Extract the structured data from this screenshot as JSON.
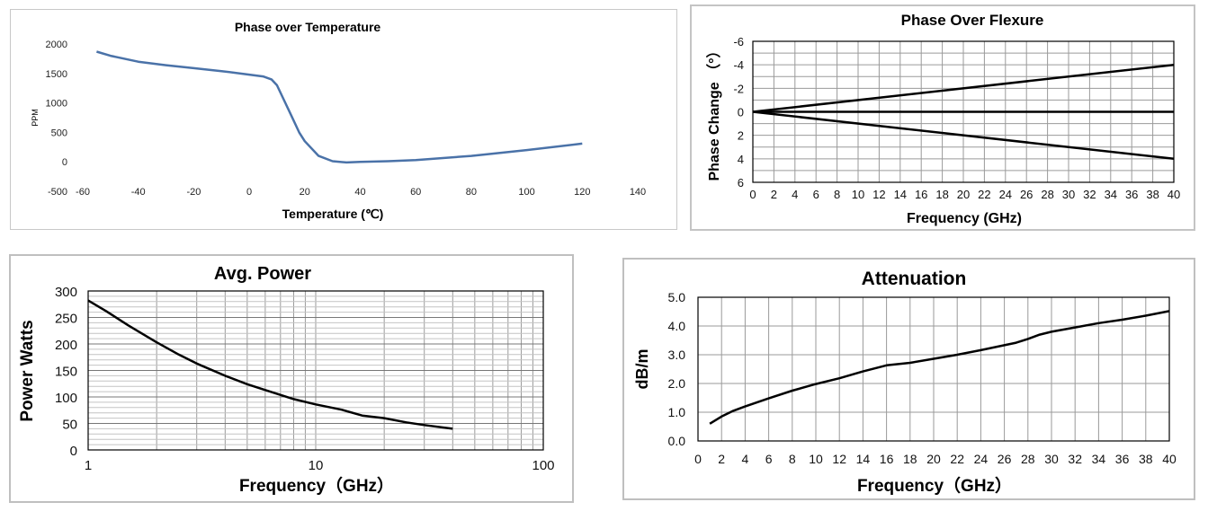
{
  "colors": {
    "temp_line": "#4a72a8",
    "black_line": "#000000",
    "grid": "#9a9a9a",
    "axis": "#000000"
  },
  "chart_data": [
    {
      "id": "temp",
      "type": "line",
      "title": "Phase over Temperature",
      "xlabel": "Temperature (℃)",
      "ylabel": "PPM",
      "xlim": [
        -60,
        140
      ],
      "ylim": [
        -500,
        2000
      ],
      "xticks": [
        "-60",
        "-40",
        "-20",
        "0",
        "20",
        "40",
        "60",
        "80",
        "100",
        "120",
        "140"
      ],
      "yticks": [
        "2000",
        "1500",
        "1000",
        "500",
        "0",
        "-500"
      ],
      "grid": false,
      "series": [
        {
          "x": [
            -55,
            -50,
            -40,
            -30,
            -20,
            -10,
            0,
            5,
            8,
            10,
            12,
            15,
            18,
            20,
            25,
            30,
            35,
            40,
            50,
            60,
            80,
            100,
            120
          ],
          "y": [
            1870,
            1800,
            1700,
            1640,
            1590,
            1540,
            1480,
            1450,
            1400,
            1300,
            1100,
            800,
            500,
            350,
            100,
            10,
            -10,
            0,
            10,
            30,
            100,
            200,
            310
          ]
        }
      ]
    },
    {
      "id": "flex",
      "type": "line",
      "title": "Phase Over Flexure",
      "xlabel": "Frequency (GHz)",
      "ylabel": "Phase Change （°）",
      "xlim": [
        0,
        40
      ],
      "ylim": [
        -6,
        6
      ],
      "y_inverted": true,
      "xticks": [
        "0",
        "2",
        "4",
        "6",
        "8",
        "10",
        "12",
        "14",
        "16",
        "18",
        "20",
        "22",
        "24",
        "26",
        "28",
        "30",
        "32",
        "34",
        "36",
        "38",
        "40"
      ],
      "yticks": [
        "-6",
        "-4",
        "-2",
        "0",
        "2",
        "4",
        "6"
      ],
      "grid": true,
      "series": [
        {
          "x": [
            0,
            40
          ],
          "y": [
            0,
            -4
          ]
        },
        {
          "x": [
            0,
            40
          ],
          "y": [
            0,
            0
          ]
        },
        {
          "x": [
            0,
            40
          ],
          "y": [
            0,
            4
          ]
        }
      ]
    },
    {
      "id": "power",
      "type": "line",
      "title": "Avg. Power",
      "xlabel": "Frequency（GHz）",
      "ylabel": "Power  Watts",
      "xscale": "log",
      "xlim": [
        1,
        100
      ],
      "ylim": [
        0,
        300
      ],
      "xticks": [
        "1",
        "10",
        "100"
      ],
      "yticks": [
        "300",
        "250",
        "200",
        "150",
        "100",
        "50",
        "0"
      ],
      "grid": true,
      "series": [
        {
          "x": [
            1,
            1.2,
            1.5,
            2,
            2.5,
            3,
            4,
            5,
            6,
            8,
            10,
            13,
            16,
            20,
            25,
            30,
            40
          ],
          "y": [
            282,
            262,
            235,
            203,
            180,
            163,
            140,
            124,
            113,
            96,
            86,
            76,
            65,
            60,
            52,
            47,
            40
          ]
        }
      ]
    },
    {
      "id": "atten",
      "type": "line",
      "title": "Attenuation",
      "xlabel": "Frequency（GHz）",
      "ylabel": "dB/m",
      "xlim": [
        0,
        40
      ],
      "ylim": [
        0,
        5
      ],
      "xticks": [
        "0",
        "2",
        "4",
        "6",
        "8",
        "10",
        "12",
        "14",
        "16",
        "18",
        "20",
        "22",
        "24",
        "26",
        "28",
        "30",
        "32",
        "34",
        "36",
        "38",
        "40"
      ],
      "yticks": [
        "5.0",
        "4.0",
        "3.0",
        "2.0",
        "1.0",
        "0.0"
      ],
      "grid": true,
      "series": [
        {
          "x": [
            1,
            2,
            3,
            4,
            6,
            8,
            10,
            12,
            14,
            16,
            18,
            20,
            22,
            24,
            26,
            27,
            28,
            29,
            30,
            32,
            34,
            36,
            38,
            40
          ],
          "y": [
            0.6,
            0.85,
            1.05,
            1.2,
            1.48,
            1.75,
            1.98,
            2.18,
            2.42,
            2.63,
            2.72,
            2.86,
            3.0,
            3.16,
            3.33,
            3.42,
            3.55,
            3.7,
            3.8,
            3.95,
            4.1,
            4.22,
            4.36,
            4.52
          ]
        }
      ]
    }
  ]
}
